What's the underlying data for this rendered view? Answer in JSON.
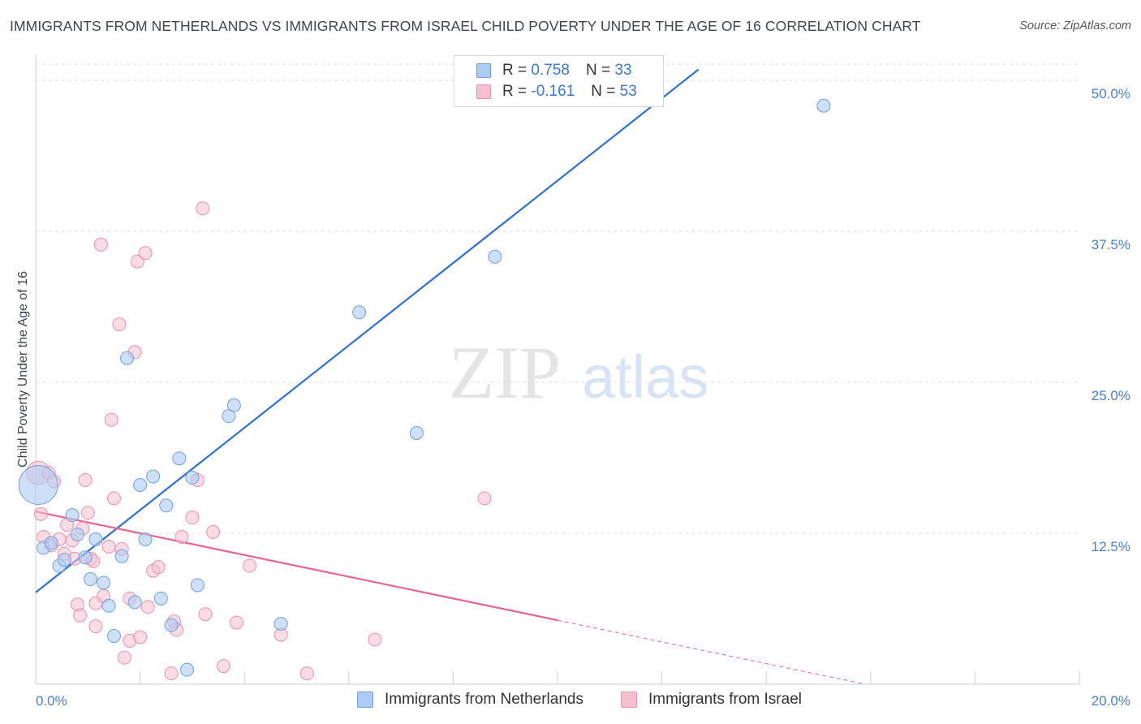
{
  "header": {
    "title": "IMMIGRANTS FROM NETHERLANDS VS IMMIGRANTS FROM ISRAEL CHILD POVERTY UNDER THE AGE OF 16 CORRELATION CHART",
    "source": "Source: ZipAtlas.com"
  },
  "watermark": {
    "zip": "ZIP",
    "atlas": "atlas"
  },
  "legend": {
    "r_label": "R =",
    "n_label": "N =",
    "netherlands": {
      "r": "0.758",
      "n": "33"
    },
    "israel": {
      "r": "-0.161",
      "n": "53"
    }
  },
  "colors": {
    "blue_fill": "#aecbf2",
    "blue_stroke": "#6f9fe0",
    "blue_line": "#3070d0",
    "pink_fill": "#f6bfd0",
    "pink_stroke": "#ee8fae",
    "pink_line": "#e8648e",
    "grid": "#dddddd",
    "tick_text": "#4a7fd0"
  },
  "chart_data": {
    "type": "scatter",
    "title": "IMMIGRANTS FROM NETHERLANDS VS IMMIGRANTS FROM ISRAEL CHILD POVERTY UNDER THE AGE OF 16 CORRELATION CHART",
    "xlabel": "",
    "ylabel": "Child Poverty Under the Age of 16",
    "xlim": [
      0,
      20
    ],
    "ylim": [
      0,
      50
    ],
    "x_tick_labels": [
      "0.0%",
      "20.0%"
    ],
    "y_ticks": [
      {
        "value": 12.5,
        "label": "12.5%"
      },
      {
        "value": 25.0,
        "label": "25.0%"
      },
      {
        "value": 37.5,
        "label": "37.5%"
      },
      {
        "value": 50.0,
        "label": "50.0%"
      }
    ],
    "series": [
      {
        "name": "Immigrants from Netherlands",
        "color": "#aecbf2",
        "r": 0.758,
        "n": 33,
        "trend": {
          "x": [
            0,
            12.7
          ],
          "y": [
            7.6,
            50.9
          ]
        },
        "points": [
          [
            0.05,
            16.5,
            3.0
          ],
          [
            0.15,
            11.3,
            1.0
          ],
          [
            0.3,
            11.7,
            1.0
          ],
          [
            0.45,
            9.8,
            1.0
          ],
          [
            0.55,
            10.3,
            1.0
          ],
          [
            0.7,
            14.0,
            1.0
          ],
          [
            0.8,
            12.4,
            1.0
          ],
          [
            0.95,
            10.5,
            1.0
          ],
          [
            1.05,
            8.7,
            1.0
          ],
          [
            1.15,
            12.0,
            1.0
          ],
          [
            1.3,
            8.4,
            1.0
          ],
          [
            1.4,
            6.5,
            1.0
          ],
          [
            1.5,
            4.0,
            1.0
          ],
          [
            1.65,
            10.6,
            1.0
          ],
          [
            1.75,
            27.0,
            1.0
          ],
          [
            1.9,
            6.8,
            1.0
          ],
          [
            2.0,
            16.5,
            1.0
          ],
          [
            2.1,
            12.0,
            1.0
          ],
          [
            2.25,
            17.2,
            1.0
          ],
          [
            2.4,
            7.1,
            1.0
          ],
          [
            2.5,
            14.8,
            1.0
          ],
          [
            2.6,
            4.9,
            1.0
          ],
          [
            2.75,
            18.7,
            1.0
          ],
          [
            2.9,
            1.2,
            1.0
          ],
          [
            3.0,
            17.1,
            1.0
          ],
          [
            3.1,
            8.2,
            1.0
          ],
          [
            3.7,
            22.2,
            1.0
          ],
          [
            3.8,
            23.1,
            1.0
          ],
          [
            4.7,
            5.0,
            1.0
          ],
          [
            6.2,
            30.8,
            1.0
          ],
          [
            7.3,
            20.8,
            1.0
          ],
          [
            8.8,
            35.4,
            1.0
          ],
          [
            15.1,
            47.9,
            1.0
          ]
        ]
      },
      {
        "name": "Immigrants from Israel",
        "color": "#f6bfd0",
        "r": -0.161,
        "n": 53,
        "trend": {
          "x": [
            0,
            10.0
          ],
          "y": [
            14.3,
            5.3
          ]
        },
        "trend_extension": {
          "x": [
            10.0,
            15.9
          ],
          "y": [
            5.3,
            0.0
          ]
        },
        "points": [
          [
            0.05,
            17.5,
            1.8
          ],
          [
            0.1,
            14.1,
            1.0
          ],
          [
            0.15,
            12.2,
            1.0
          ],
          [
            0.25,
            17.5,
            1.0
          ],
          [
            0.3,
            11.5,
            1.0
          ],
          [
            0.35,
            16.8,
            1.0
          ],
          [
            0.45,
            12.0,
            1.0
          ],
          [
            0.55,
            10.8,
            1.0
          ],
          [
            0.6,
            13.2,
            1.0
          ],
          [
            0.7,
            11.9,
            1.0
          ],
          [
            0.75,
            10.4,
            1.0
          ],
          [
            0.8,
            6.6,
            1.0
          ],
          [
            0.85,
            5.7,
            1.0
          ],
          [
            0.9,
            12.9,
            1.0
          ],
          [
            0.95,
            16.9,
            1.0
          ],
          [
            1.0,
            14.2,
            1.0
          ],
          [
            1.05,
            10.4,
            1.0
          ],
          [
            1.1,
            10.2,
            1.0
          ],
          [
            1.15,
            6.7,
            1.0
          ],
          [
            1.15,
            4.8,
            1.0
          ],
          [
            1.25,
            36.4,
            1.0
          ],
          [
            1.3,
            7.3,
            1.0
          ],
          [
            1.4,
            11.4,
            1.0
          ],
          [
            1.45,
            21.9,
            1.0
          ],
          [
            1.5,
            15.4,
            1.0
          ],
          [
            1.6,
            29.8,
            1.0
          ],
          [
            1.65,
            11.2,
            1.0
          ],
          [
            1.7,
            2.2,
            1.0
          ],
          [
            1.8,
            3.6,
            1.0
          ],
          [
            1.8,
            7.1,
            1.0
          ],
          [
            1.9,
            27.5,
            1.0
          ],
          [
            1.95,
            35.0,
            1.0
          ],
          [
            2.0,
            3.9,
            1.0
          ],
          [
            2.1,
            35.7,
            1.0
          ],
          [
            2.15,
            6.4,
            1.0
          ],
          [
            2.25,
            9.4,
            1.0
          ],
          [
            2.35,
            9.7,
            1.0
          ],
          [
            2.6,
            0.9,
            1.0
          ],
          [
            2.65,
            5.2,
            1.0
          ],
          [
            2.7,
            4.5,
            1.0
          ],
          [
            2.8,
            12.2,
            1.0
          ],
          [
            3.0,
            13.8,
            1.0
          ],
          [
            3.1,
            16.9,
            1.0
          ],
          [
            3.2,
            39.4,
            1.0
          ],
          [
            3.25,
            5.8,
            1.0
          ],
          [
            3.4,
            12.6,
            1.0
          ],
          [
            3.6,
            1.5,
            1.0
          ],
          [
            3.85,
            5.1,
            1.0
          ],
          [
            4.1,
            9.8,
            1.0
          ],
          [
            4.7,
            4.1,
            1.0
          ],
          [
            5.2,
            0.9,
            1.0
          ],
          [
            6.5,
            3.7,
            1.0
          ],
          [
            8.6,
            15.4,
            1.0
          ]
        ]
      }
    ]
  }
}
